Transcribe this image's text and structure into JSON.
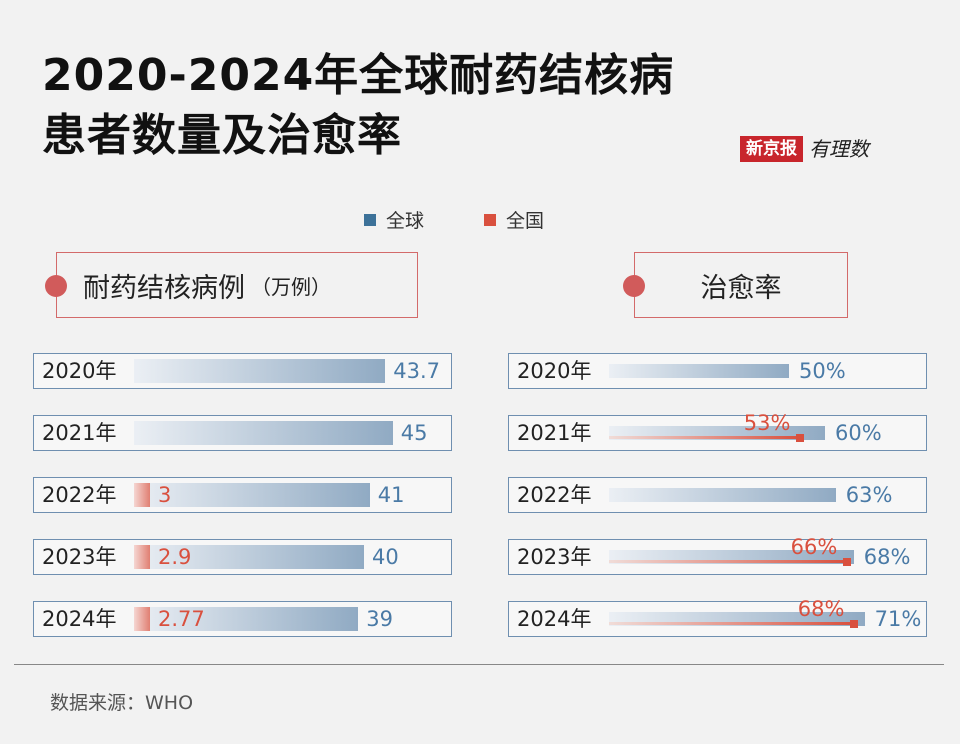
{
  "title_line1": "2020-2024年全球耐药结核病",
  "title_line2": "患者数量及治愈率",
  "brand": {
    "name": "新京报",
    "column": "有理数"
  },
  "legend": [
    {
      "label": "全球",
      "color": "#3d7299"
    },
    {
      "label": "全国",
      "color": "#d9503e"
    }
  ],
  "panels": {
    "cases": {
      "title": "耐药结核病例",
      "unit": "（万例）"
    },
    "rate": {
      "title": "治愈率"
    }
  },
  "source": "数据来源：WHO",
  "chart_data": [
    {
      "type": "bar",
      "title": "耐药结核病例",
      "unit": "（万例）",
      "categories": [
        "2020年",
        "2021年",
        "2022年",
        "2023年",
        "2024年"
      ],
      "series": [
        {
          "name": "全球",
          "values": [
            43.7,
            45,
            41,
            40,
            39
          ],
          "labels": [
            "43.7",
            "45",
            "41",
            "40",
            "39"
          ]
        },
        {
          "name": "全国",
          "values": [
            null,
            null,
            3,
            2.9,
            2.77
          ],
          "labels": [
            "",
            "",
            "3",
            "2.9",
            "2.77"
          ]
        }
      ]
    },
    {
      "type": "bar",
      "title": "治愈率",
      "categories": [
        "2020年",
        "2021年",
        "2022年",
        "2023年",
        "2024年"
      ],
      "series": [
        {
          "name": "全球",
          "values": [
            50,
            60,
            63,
            68,
            71
          ],
          "labels": [
            "50%",
            "60%",
            "63%",
            "68%",
            "71%"
          ]
        },
        {
          "name": "全国",
          "values": [
            null,
            53,
            null,
            66,
            68
          ],
          "labels": [
            "",
            "53%",
            "",
            "66%",
            "68%"
          ]
        }
      ]
    }
  ]
}
